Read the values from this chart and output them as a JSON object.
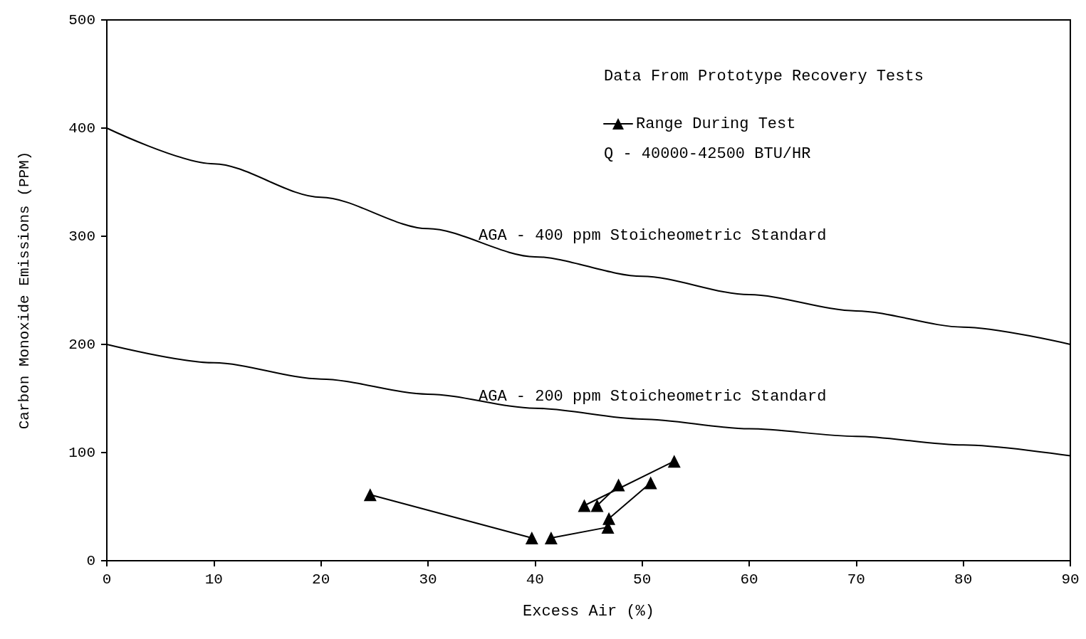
{
  "chart_data": {
    "type": "line",
    "xlabel": "Excess Air (%)",
    "ylabel": "Carbon Monoxide Emissions (PPM)",
    "legend_title": "Data From Prototype Recovery Tests",
    "legend": "top right",
    "grid": false,
    "xlim": [
      0,
      90
    ],
    "xticks": [
      0,
      10,
      20,
      30,
      40,
      50,
      60,
      70,
      80,
      90
    ],
    "ylim": [
      0,
      500
    ],
    "yticks": [
      0,
      100,
      200,
      300,
      400,
      500
    ],
    "series": [
      {
        "color": "#000000",
        "marker": "none",
        "x": [
          0,
          10,
          20,
          30,
          40,
          50,
          60,
          70,
          80,
          90
        ],
        "values": [
          400,
          367,
          336,
          307,
          281,
          263,
          246,
          231,
          216,
          200
        ]
      },
      {
        "color": "#000000",
        "marker": "none",
        "x": [
          0,
          10,
          20,
          30,
          40,
          50,
          60,
          70,
          80,
          90
        ],
        "values": [
          200,
          183,
          168,
          154,
          141,
          131,
          122,
          115,
          107,
          97
        ]
      },
      {
        "name": "Range During Test",
        "color": "#000000",
        "marker": "triangle",
        "x": [
          24.6,
          39.7,
          null,
          41.5,
          46.8,
          null,
          46.9,
          50.8,
          null,
          44.6,
          53,
          null,
          45.8,
          47.8
        ],
        "values": [
          61,
          21,
          null,
          21,
          31,
          null,
          39,
          72,
          null,
          51,
          92,
          null,
          51,
          70
        ]
      }
    ],
    "annotations": [
      "Q - 40000-42500 BTU/HR",
      "AGA - 400 ppm Stoicheometric Standard",
      "AGA - 200 ppm Stoicheometric Standard"
    ]
  }
}
